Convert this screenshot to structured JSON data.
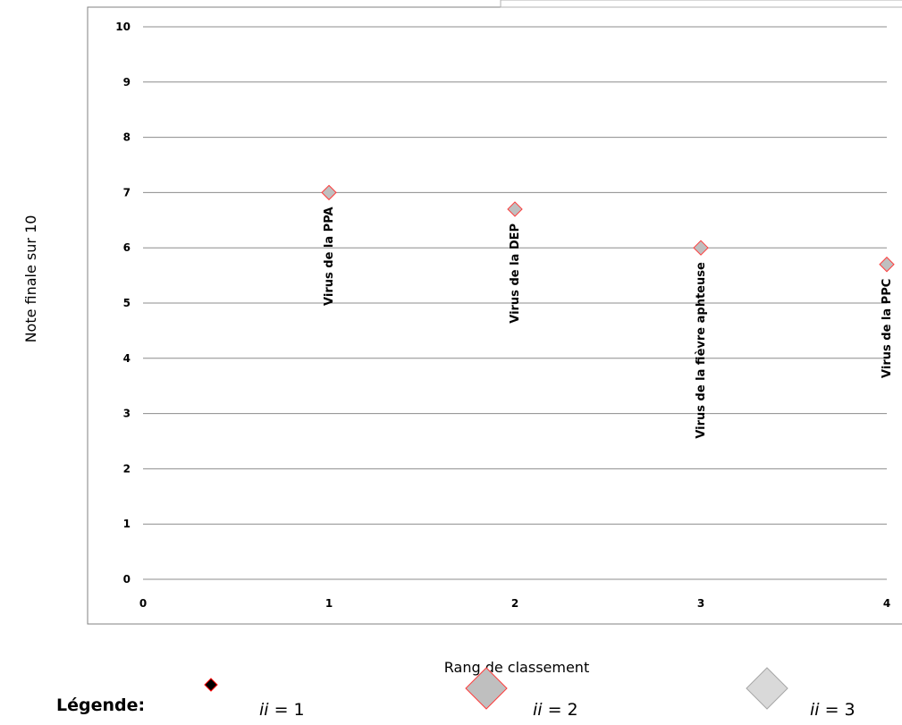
{
  "chart_data": {
    "type": "scatter",
    "xlabel": "Rang de classement",
    "ylabel": "Note finale sur 10",
    "xlim": [
      0,
      4
    ],
    "ylim": [
      0,
      10
    ],
    "x_ticks": [
      "0",
      "1",
      "2",
      "3",
      "4"
    ],
    "y_ticks": [
      "0",
      "1",
      "2",
      "3",
      "4",
      "5",
      "6",
      "7",
      "8",
      "9",
      "10"
    ],
    "grid": "horizontal",
    "points": [
      {
        "x": 1,
        "y": 7.0,
        "label": "Virus de la PPA",
        "marker": "ii2"
      },
      {
        "x": 2,
        "y": 6.7,
        "label": "Virus de la DEP",
        "marker": "ii2"
      },
      {
        "x": 3,
        "y": 6.0,
        "label": "Virus de la fièvre aphteuse",
        "marker": "ii2"
      },
      {
        "x": 4,
        "y": 5.7,
        "label": "Virus de la PPC",
        "marker": "ii2"
      }
    ],
    "legend": {
      "title": "Légende:",
      "entries": [
        {
          "key": "ii1",
          "italic": "ii",
          "text": " = 1",
          "fill": "#000000",
          "stroke": "#ff0000"
        },
        {
          "key": "ii2",
          "italic": "ii",
          "text": " = 2",
          "fill": "#bfbfbf",
          "stroke": "#ff3b3b"
        },
        {
          "key": "ii3",
          "italic": "ii",
          "text": " = 3",
          "fill": "#d9d9d9",
          "stroke": "#a6a6a6"
        }
      ]
    },
    "colors": {
      "grid": "#8c8c8c",
      "frame": "#808080"
    }
  }
}
